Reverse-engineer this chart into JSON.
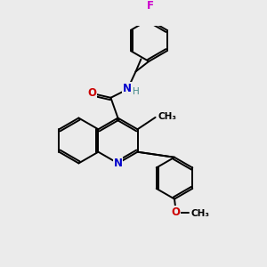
{
  "background_color": "#ebebeb",
  "bond_color": "#000000",
  "atom_colors": {
    "N": "#0000cc",
    "O": "#cc0000",
    "F": "#cc00cc",
    "H": "#448888",
    "C": "#000000"
  },
  "figsize": [
    3.0,
    3.0
  ],
  "dpi": 100,
  "lw": 1.4,
  "fs": 8.5
}
